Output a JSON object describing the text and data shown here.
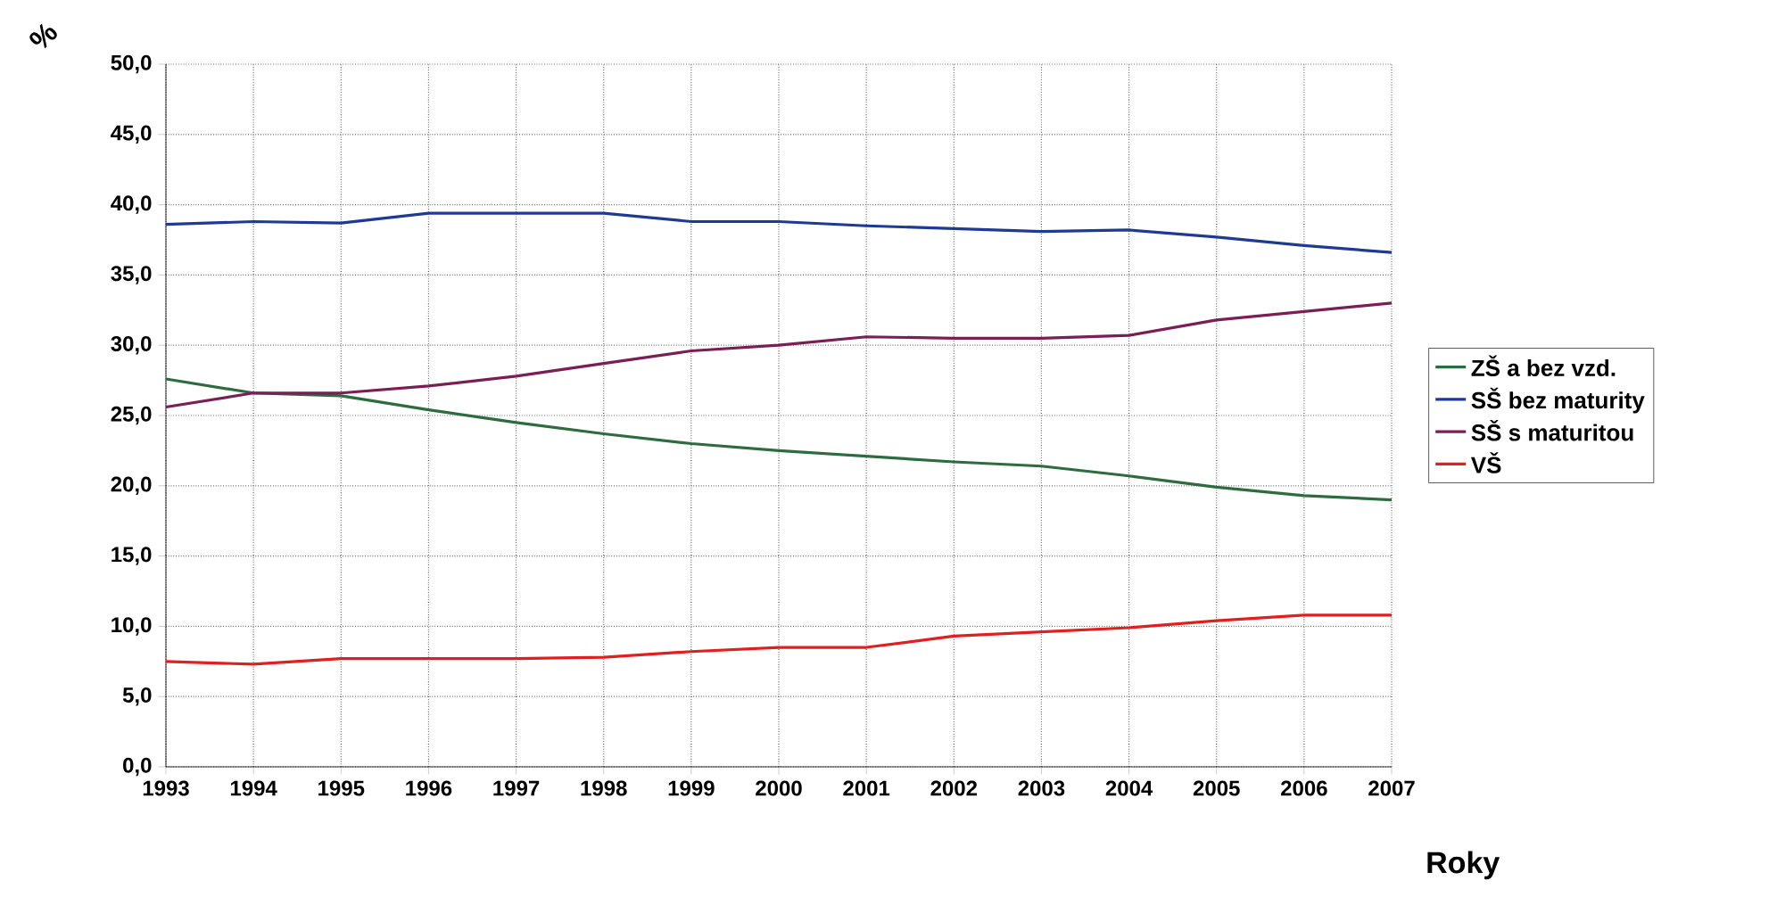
{
  "chart_data": {
    "type": "line",
    "xlabel": "Roky",
    "ylabel": "%",
    "categories": [
      "1993",
      "1994",
      "1995",
      "1996",
      "1997",
      "1998",
      "1999",
      "2000",
      "2001",
      "2002",
      "2003",
      "2004",
      "2005",
      "2006",
      "2007"
    ],
    "series": [
      {
        "name": "ZŠ a bez vzd.",
        "color": "#2e6b3f",
        "values": [
          27.6,
          26.6,
          26.4,
          25.4,
          24.5,
          23.7,
          23.0,
          22.5,
          22.1,
          21.7,
          21.4,
          20.7,
          19.9,
          19.3,
          19.0
        ]
      },
      {
        "name": "SŠ bez maturity",
        "color": "#1f3a93",
        "values": [
          38.6,
          38.8,
          38.7,
          39.4,
          39.4,
          39.4,
          38.8,
          38.8,
          38.5,
          38.3,
          38.1,
          38.2,
          37.7,
          37.1,
          36.6
        ]
      },
      {
        "name": "SŠ s maturitou",
        "color": "#7a1f55",
        "values": [
          25.6,
          26.6,
          26.6,
          27.1,
          27.8,
          28.7,
          29.6,
          30.0,
          30.6,
          30.5,
          30.5,
          30.7,
          31.8,
          32.4,
          33.0
        ]
      },
      {
        "name": "VŠ",
        "color": "#e02020",
        "values": [
          7.5,
          7.3,
          7.7,
          7.7,
          7.7,
          7.8,
          8.2,
          8.5,
          8.5,
          9.3,
          9.6,
          9.9,
          10.4,
          10.8,
          10.8
        ]
      }
    ],
    "ylim": [
      0,
      50
    ],
    "yticks": [
      {
        "value": 0,
        "label": "0,0"
      },
      {
        "value": 5,
        "label": "5,0"
      },
      {
        "value": 10,
        "label": "10,0"
      },
      {
        "value": 15,
        "label": "15,0"
      },
      {
        "value": 20,
        "label": "20,0"
      },
      {
        "value": 25,
        "label": "25,0"
      },
      {
        "value": 30,
        "label": "30,0"
      },
      {
        "value": 35,
        "label": "35,0"
      },
      {
        "value": 40,
        "label": "40,0"
      },
      {
        "value": 45,
        "label": "45,0"
      },
      {
        "value": 50,
        "label": "50,0"
      }
    ],
    "grid": true,
    "legend": "right",
    "line_style": "solid",
    "marker": "none"
  }
}
